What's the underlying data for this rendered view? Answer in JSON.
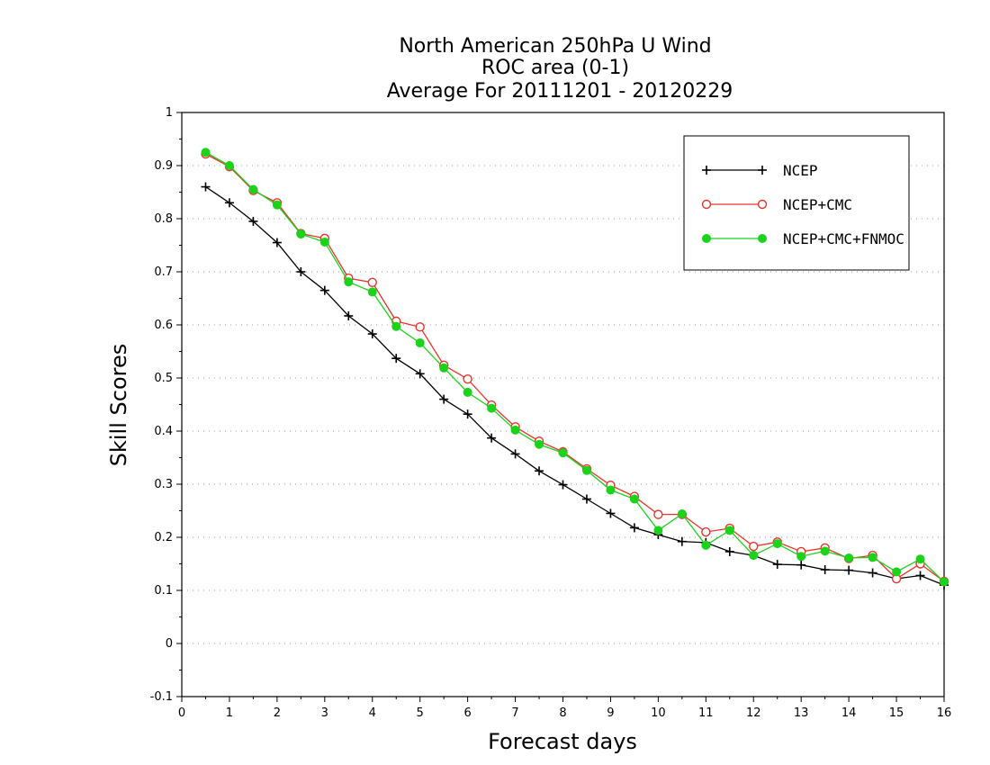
{
  "chart_data": {
    "type": "line",
    "title_lines": [
      "North American 250hPa U Wind",
      "ROC area (0-1)",
      "Average For 20111201 - 20120229"
    ],
    "xlabel": "Forecast days",
    "ylabel": "Skill Scores",
    "xlim": [
      0,
      16
    ],
    "ylim": [
      -0.1,
      1
    ],
    "xticks": [
      0,
      1,
      2,
      3,
      4,
      5,
      6,
      7,
      8,
      9,
      10,
      11,
      12,
      13,
      14,
      15,
      16
    ],
    "yticks": [
      -0.1,
      0,
      0.1,
      0.2,
      0.3,
      0.4,
      0.5,
      0.6,
      0.7,
      0.8,
      0.9,
      1
    ],
    "ytick_labels": [
      "-0.1",
      "0",
      "0.1",
      "0.2",
      "0.3",
      "0.4",
      "0.5",
      "0.6",
      "0.7",
      "0.8",
      "0.9",
      "1"
    ],
    "grid": true,
    "legend_position": "top-right",
    "x": [
      0.5,
      1,
      1.5,
      2,
      2.5,
      3,
      3.5,
      4,
      4.5,
      5,
      5.5,
      6,
      6.5,
      7,
      7.5,
      8,
      8.5,
      9,
      9.5,
      10,
      10.5,
      11,
      11.5,
      12,
      12.5,
      13,
      13.5,
      14,
      14.5,
      15,
      15.5,
      16
    ],
    "series": [
      {
        "name": "NCEP",
        "color": "#000000",
        "marker": "plus",
        "values": [
          0.86,
          0.83,
          0.795,
          0.755,
          0.7,
          0.665,
          0.617,
          0.583,
          0.537,
          0.508,
          0.46,
          0.432,
          0.387,
          0.357,
          0.325,
          0.299,
          0.272,
          0.245,
          0.218,
          0.205,
          0.192,
          0.19,
          0.173,
          0.166,
          0.149,
          0.148,
          0.139,
          0.138,
          0.133,
          0.122,
          0.128,
          0.11
        ]
      },
      {
        "name": "NCEP+CMC",
        "color": "#e8342c",
        "marker": "open-circle",
        "values": [
          0.922,
          0.898,
          0.853,
          0.83,
          0.772,
          0.763,
          0.688,
          0.68,
          0.607,
          0.596,
          0.524,
          0.498,
          0.449,
          0.408,
          0.381,
          0.361,
          0.329,
          0.298,
          0.277,
          0.243,
          0.243,
          0.21,
          0.217,
          0.183,
          0.191,
          0.173,
          0.18,
          0.16,
          0.166,
          0.122,
          0.15,
          0.117
        ]
      },
      {
        "name": "NCEP+CMC+FNMOC",
        "color": "#1ad31a",
        "marker": "filled-circle",
        "values": [
          0.925,
          0.9,
          0.855,
          0.826,
          0.771,
          0.756,
          0.681,
          0.662,
          0.597,
          0.566,
          0.519,
          0.473,
          0.443,
          0.402,
          0.375,
          0.359,
          0.326,
          0.289,
          0.272,
          0.213,
          0.244,
          0.185,
          0.213,
          0.166,
          0.188,
          0.164,
          0.174,
          0.161,
          0.162,
          0.135,
          0.159,
          0.116
        ]
      }
    ]
  }
}
